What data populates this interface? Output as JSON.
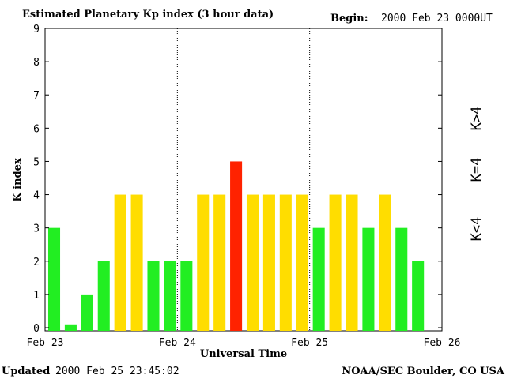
{
  "header": {
    "title": "Estimated Planetary Kp index (3 hour data)",
    "begin_label": "Begin:",
    "begin_value": "2000 Feb 23 0000UT"
  },
  "footer": {
    "updated_label": "Updated",
    "updated_value": "2000 Feb 25 23:45:02",
    "source": "NOAA/SEC Boulder, CO USA"
  },
  "legend": {
    "high": "K>4",
    "equal": "K=4",
    "low": "K<4"
  },
  "colors": {
    "low": "#22ee22",
    "equal": "#ffdd00",
    "high": "#ff2200",
    "axis": "#000000"
  },
  "chart_data": {
    "type": "bar",
    "title": "Estimated Planetary Kp index (3 hour data)",
    "xlabel": "Universal Time",
    "ylabel": "K index",
    "ylim": [
      0,
      9
    ],
    "yticks": [
      "0",
      "1",
      "2",
      "3",
      "4",
      "5",
      "6",
      "7",
      "8",
      "9"
    ],
    "xticks": [
      "Feb 23",
      "Feb 24",
      "Feb 25",
      "Feb 26"
    ],
    "day_dividers": [
      "Feb 24",
      "Feb 25"
    ],
    "interval_hours": 3,
    "values": [
      3,
      0.1,
      1,
      2,
      4,
      4,
      2,
      2,
      2,
      4,
      4,
      5,
      4,
      4,
      4,
      4,
      3,
      4,
      4,
      3,
      4,
      3,
      2
    ]
  }
}
